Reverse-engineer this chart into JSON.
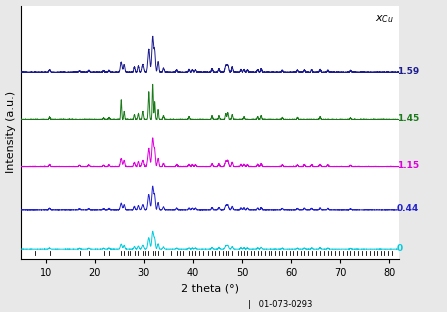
{
  "title": "",
  "xlabel": "2 theta (°)",
  "ylabel": "Intensity (a.u.)",
  "xlim": [
    5,
    82
  ],
  "x_ticks": [
    10,
    20,
    30,
    40,
    50,
    60,
    70,
    80
  ],
  "series_labels": [
    "1.59",
    "1.45",
    "1.15",
    "0.44",
    "0"
  ],
  "series_colors": [
    "#1c1c8f",
    "#1a7a1a",
    "#dd00dd",
    "#2222cc",
    "#00ccdd"
  ],
  "label_colors": [
    "#1c1c8f",
    "#1a7a1a",
    "#dd00dd",
    "#2222cc",
    "#00ccdd"
  ],
  "offsets": [
    4.5,
    3.3,
    2.1,
    1.0,
    0.0
  ],
  "bragg_positions": [
    7.8,
    10.8,
    16.9,
    18.8,
    21.8,
    22.9,
    25.4,
    25.9,
    26.7,
    27.2,
    28.1,
    28.9,
    29.8,
    30.2,
    30.8,
    31.8,
    32.2,
    32.9,
    34.0,
    35.5,
    36.7,
    37.4,
    38.0,
    39.2,
    39.9,
    40.5,
    41.3,
    42.0,
    43.1,
    43.9,
    44.5,
    45.3,
    46.1,
    46.7,
    47.1,
    48.0,
    49.2,
    49.8,
    50.4,
    51.1,
    51.8,
    52.5,
    53.2,
    53.9,
    54.6,
    55.4,
    56.0,
    56.8,
    57.5,
    58.2,
    59.0,
    59.7,
    60.4,
    61.3,
    62.0,
    62.7,
    63.5,
    64.2,
    65.1,
    65.9,
    66.7,
    67.5,
    68.2,
    69.0,
    69.8,
    70.5,
    71.3,
    72.1,
    72.9,
    73.7,
    74.4,
    75.2,
    76.0,
    76.8,
    77.5,
    78.3,
    79.0,
    79.7,
    80.5
  ],
  "reference_label": "|   01-073-0293",
  "fig_facecolor": "#e8e8e8"
}
